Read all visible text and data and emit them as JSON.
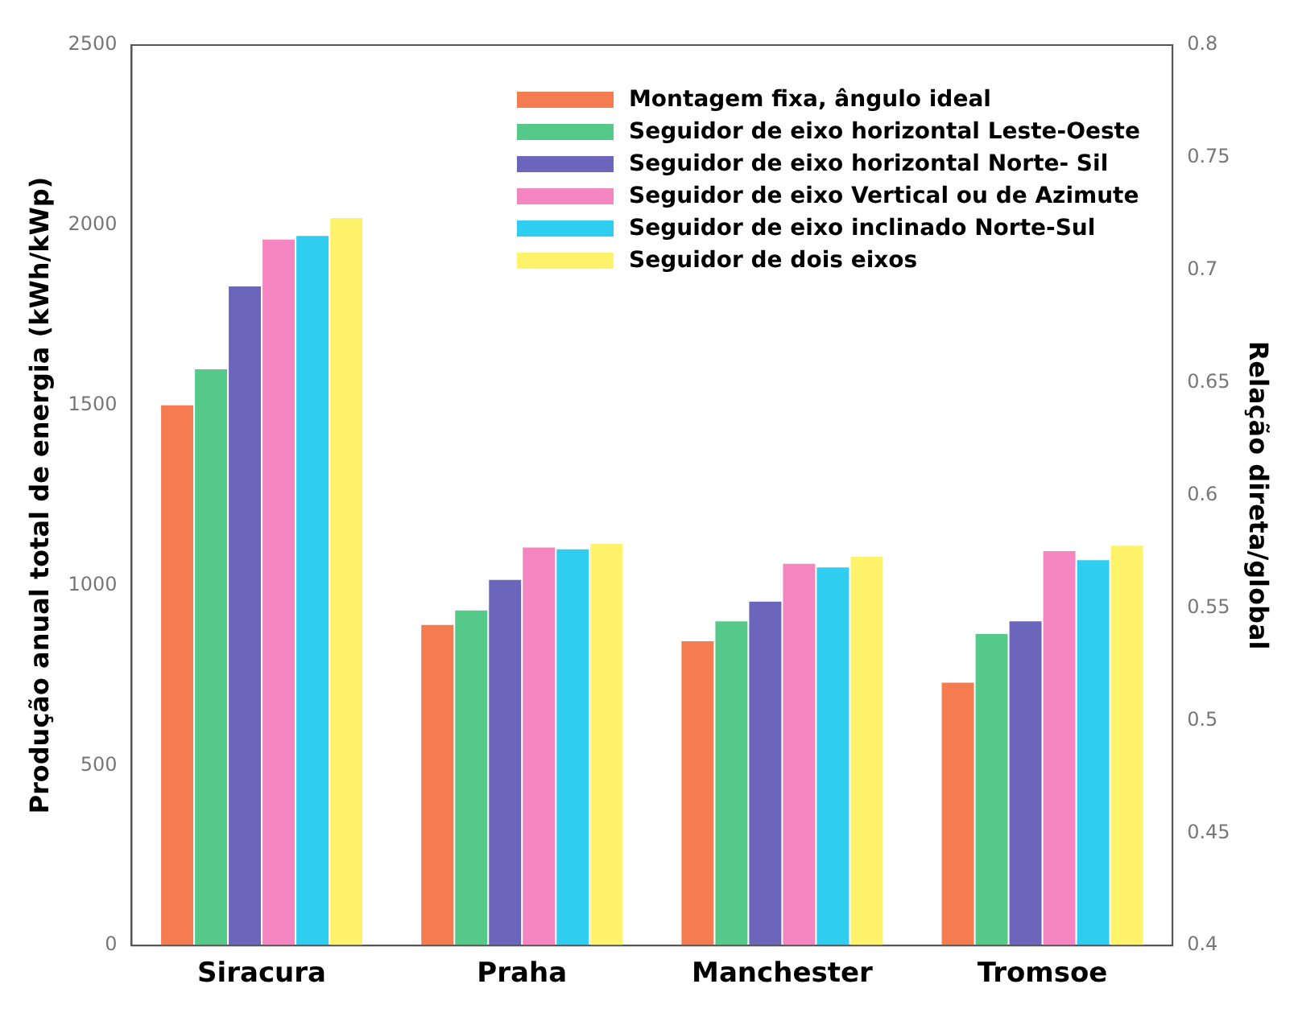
{
  "chart_data": {
    "type": "bar",
    "categories": [
      "Siracura",
      "Praha",
      "Manchester",
      "Tromsoe"
    ],
    "series": [
      {
        "name": "Montagem fixa, ângulo ideal",
        "color": "#f47c50",
        "values": [
          1500,
          890,
          845,
          730
        ]
      },
      {
        "name": "Seguidor de eixo horizontal Leste-Oeste",
        "color": "#55c98a",
        "values": [
          1600,
          930,
          900,
          865
        ]
      },
      {
        "name": "Seguidor de eixo horizontal Norte- Sil",
        "color": "#6b66bb",
        "values": [
          1830,
          1015,
          955,
          900
        ]
      },
      {
        "name": "Seguidor de eixo Vertical ou de Azimute",
        "color": "#f585c0",
        "values": [
          1960,
          1105,
          1060,
          1095
        ]
      },
      {
        "name": "Seguidor de eixo inclinado Norte-Sul",
        "color": "#2fcdf0",
        "values": [
          1970,
          1100,
          1050,
          1070
        ]
      },
      {
        "name": "Seguidor de dois eixos",
        "color": "#fff36b",
        "values": [
          2020,
          1115,
          1080,
          1110
        ]
      }
    ],
    "ylabel": "Produção anual total de energia (kWh/kWp)",
    "y2label": "Relação direta/global",
    "ylim": [
      0,
      2500
    ],
    "yticks": [
      0,
      500,
      1000,
      1500,
      2000,
      2500
    ],
    "y2lim": [
      0.4,
      0.8
    ],
    "y2ticks": [
      0.4,
      0.45,
      0.5,
      0.55,
      0.6,
      0.65,
      0.7,
      0.75,
      0.8
    ],
    "grid": false,
    "legend": "top right"
  }
}
